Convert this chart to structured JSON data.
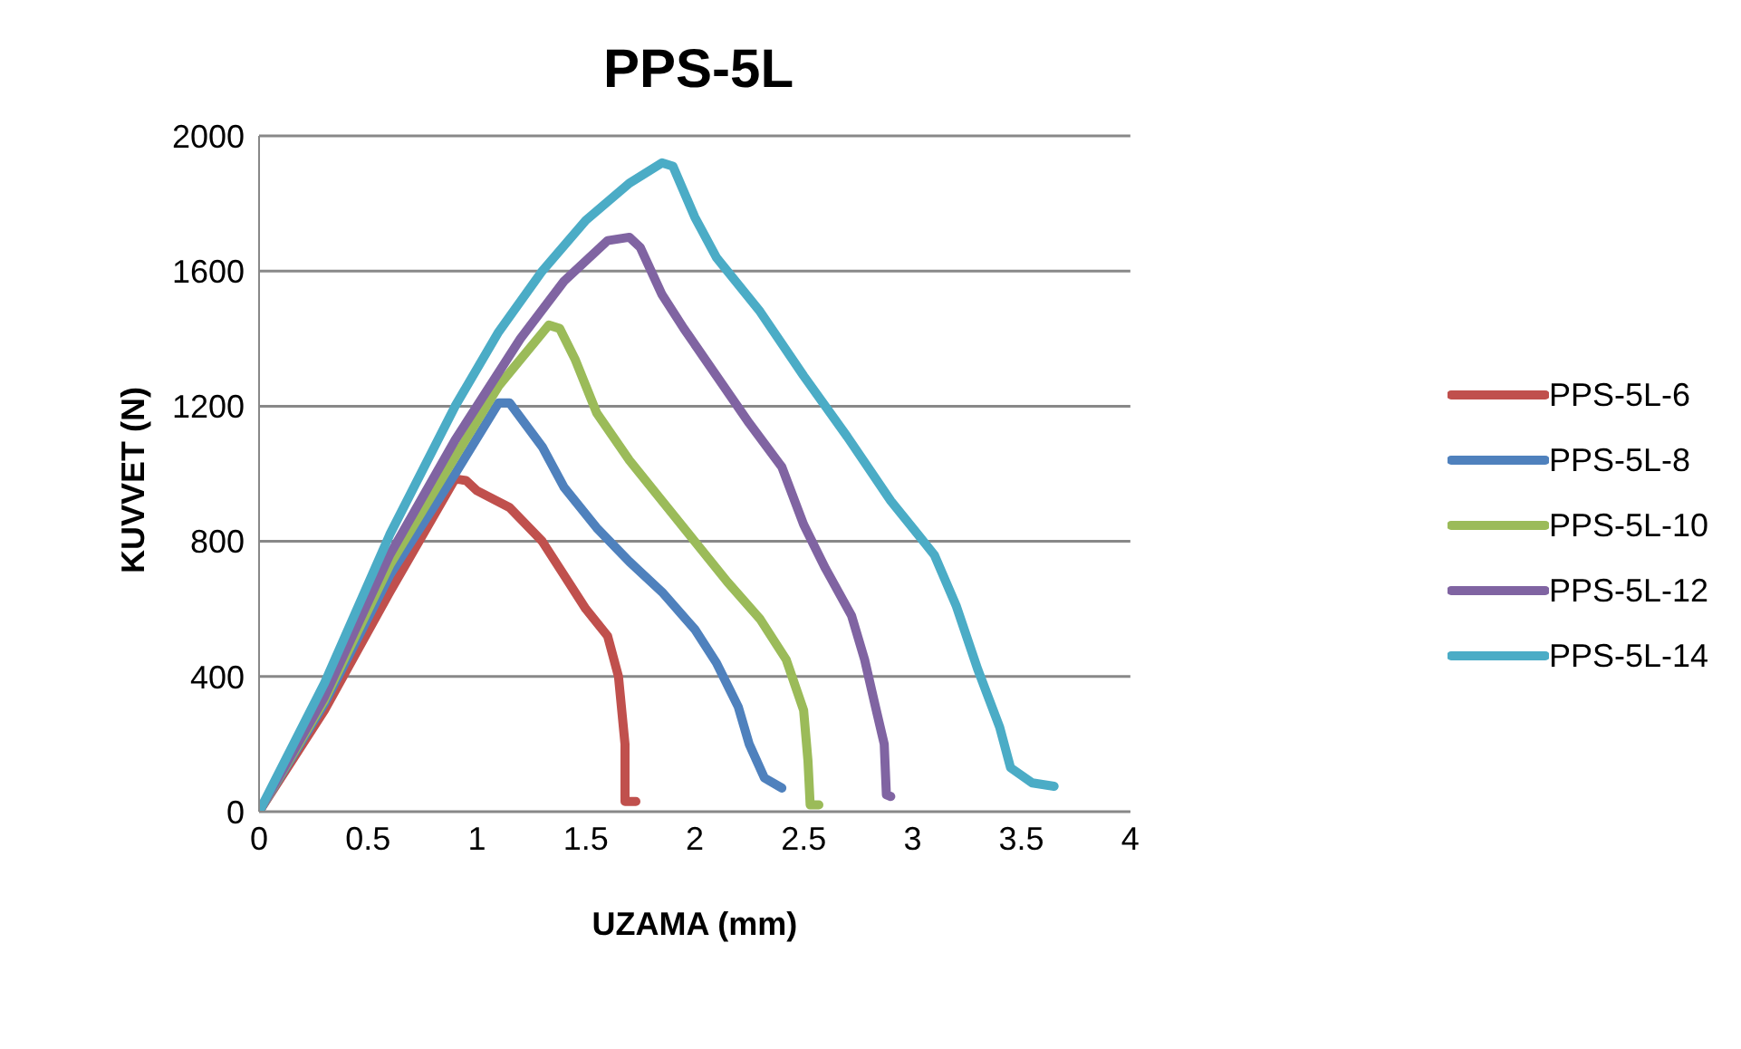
{
  "chart_data": {
    "type": "line",
    "title": "PPS-5L",
    "xlabel": "UZAMA (mm)",
    "ylabel": "KUVVET (N)",
    "xlim": [
      0,
      4
    ],
    "xticks": [
      0,
      0.5,
      1,
      1.5,
      2,
      2.5,
      3,
      3.5,
      4
    ],
    "ylim": [
      0,
      2000
    ],
    "yticks": [
      0,
      400,
      800,
      1200,
      1600,
      2000
    ],
    "grid": "y",
    "legend": "right",
    "marker": "none",
    "line_style": "solid",
    "series": [
      {
        "name": "PPS-5L-6",
        "color": "#c0504d",
        "x": [
          0,
          0.3,
          0.6,
          0.9,
          0.95,
          1.0,
          1.15,
          1.3,
          1.4,
          1.5,
          1.6,
          1.65,
          1.68,
          1.68,
          1.73
        ],
        "values": [
          0,
          300,
          650,
          985,
          980,
          950,
          900,
          800,
          700,
          600,
          520,
          400,
          200,
          30,
          30
        ]
      },
      {
        "name": "PPS-5L-8",
        "color": "#4f81bd",
        "x": [
          0,
          0.3,
          0.6,
          0.9,
          1.1,
          1.15,
          1.3,
          1.4,
          1.55,
          1.7,
          1.85,
          2.0,
          2.1,
          2.2,
          2.25,
          2.32,
          2.4
        ],
        "values": [
          0,
          320,
          700,
          1000,
          1210,
          1210,
          1080,
          960,
          840,
          740,
          650,
          540,
          440,
          310,
          200,
          100,
          70
        ]
      },
      {
        "name": "PPS-5L-10",
        "color": "#9bbb59",
        "x": [
          0,
          0.3,
          0.6,
          0.9,
          1.1,
          1.33,
          1.38,
          1.45,
          1.55,
          1.7,
          1.85,
          2.0,
          2.15,
          2.3,
          2.42,
          2.5,
          2.52,
          2.53,
          2.57
        ],
        "values": [
          0,
          330,
          730,
          1050,
          1260,
          1440,
          1430,
          1340,
          1180,
          1040,
          920,
          800,
          680,
          570,
          450,
          300,
          150,
          20,
          20
        ]
      },
      {
        "name": "PPS-5L-12",
        "color": "#8064a2",
        "x": [
          0,
          0.3,
          0.6,
          0.9,
          1.2,
          1.4,
          1.6,
          1.7,
          1.75,
          1.85,
          1.95,
          2.1,
          2.25,
          2.4,
          2.5,
          2.6,
          2.72,
          2.78,
          2.83,
          2.87,
          2.88,
          2.9
        ],
        "values": [
          0,
          340,
          760,
          1100,
          1400,
          1570,
          1690,
          1700,
          1670,
          1530,
          1430,
          1290,
          1150,
          1020,
          850,
          720,
          580,
          450,
          310,
          200,
          50,
          45
        ]
      },
      {
        "name": "PPS-5L-14",
        "color": "#4bacc6",
        "x": [
          0,
          0.3,
          0.6,
          0.9,
          1.1,
          1.3,
          1.5,
          1.7,
          1.85,
          1.9,
          2.0,
          2.1,
          2.3,
          2.5,
          2.7,
          2.9,
          3.1,
          3.2,
          3.3,
          3.4,
          3.45,
          3.55,
          3.65
        ],
        "values": [
          0,
          380,
          820,
          1200,
          1420,
          1600,
          1750,
          1860,
          1920,
          1910,
          1760,
          1640,
          1480,
          1290,
          1110,
          920,
          760,
          610,
          420,
          250,
          130,
          85,
          75
        ]
      }
    ]
  }
}
